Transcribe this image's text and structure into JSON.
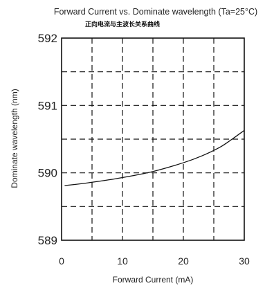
{
  "chart_data": {
    "type": "line",
    "title": "Forward Current vs. Dominate wavelength (Ta=25°C)",
    "subtitle": "正向电流与主波长关系曲线",
    "xlabel": "Forward  Current  (mA)",
    "ylabel": "Dominate wavelength (nm)",
    "xlim": [
      0,
      30
    ],
    "ylim": [
      589,
      592
    ],
    "xticks": [
      "0",
      "10",
      "20",
      "30"
    ],
    "yticks": [
      "589",
      "590",
      "591",
      "592"
    ],
    "grid": true,
    "series": [
      {
        "x": [
          0.5,
          5,
          10,
          15,
          20,
          23,
          26,
          28,
          30
        ],
        "y": [
          589.81,
          589.86,
          589.93,
          590.02,
          590.15,
          590.25,
          590.38,
          590.5,
          590.63
        ]
      }
    ]
  }
}
